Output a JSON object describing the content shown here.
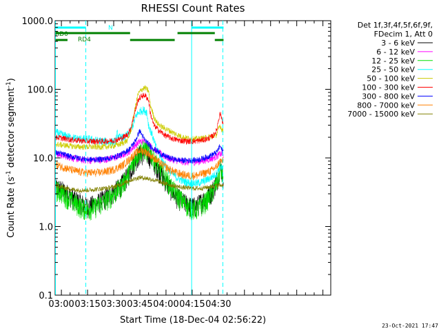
{
  "chart_data": {
    "type": "line",
    "title": "RHESSI Count Rates",
    "xlabel": "Start Time (18-Dec-04 02:56:22)",
    "ylabel_main": "Count Rate (s",
    "ylabel_exp": "-1",
    "ylabel_rest": " detector segment",
    "ylabel_exp2": "-1",
    "ylabel_close": ")",
    "y_scale": "log",
    "ylim": [
      0.1,
      1000
    ],
    "xlim_minutes": [
      56.4,
      214.5
    ],
    "grid": false,
    "legend_position": "right",
    "y_ticks": [
      {
        "value": 1000,
        "label": "1000.0"
      },
      {
        "value": 100,
        "label": "100.0"
      },
      {
        "value": 10,
        "label": "10.0"
      },
      {
        "value": 1,
        "label": "1.0"
      },
      {
        "value": 0.1,
        "label": "0.1"
      }
    ],
    "x_ticks": [
      {
        "minutes": 60,
        "label": "03:00"
      },
      {
        "minutes": 75,
        "label": "03:15"
      },
      {
        "minutes": 90,
        "label": "03:30"
      },
      {
        "minutes": 105,
        "label": "03:45"
      },
      {
        "minutes": 120,
        "label": "04:00"
      },
      {
        "minutes": 135,
        "label": "04:15"
      },
      {
        "minutes": 150,
        "label": "04:30"
      }
    ],
    "legend_header": [
      "Det 1f,3f,4f,5f,6f,9f,",
      "FDecim 1, Att 0"
    ],
    "series": [
      {
        "name": "3 - 6 keV",
        "color": "#000000",
        "points": [
          [
            56.4,
            3.8
          ],
          [
            60,
            3.5
          ],
          [
            64,
            3.0
          ],
          [
            68,
            2.5
          ],
          [
            72,
            2.2
          ],
          [
            75,
            2.0
          ],
          [
            80,
            2.2
          ],
          [
            85,
            2.6
          ],
          [
            90,
            3.2
          ],
          [
            94,
            4.0
          ],
          [
            98,
            5.5
          ],
          [
            102,
            9.0
          ],
          [
            105,
            11.5
          ],
          [
            108,
            11.8
          ],
          [
            111,
            10.5
          ],
          [
            114,
            8.0
          ],
          [
            118,
            5.5
          ],
          [
            122,
            3.8
          ],
          [
            126,
            2.8
          ],
          [
            130,
            2.3
          ],
          [
            134,
            2.0
          ],
          [
            137,
            2.0
          ],
          [
            140,
            2.3
          ],
          [
            143,
            2.7
          ],
          [
            146,
            3.2
          ],
          [
            148,
            4.0
          ],
          [
            150,
            5.5
          ],
          [
            151,
            8.0
          ],
          [
            152,
            6.5
          ],
          [
            153,
            5.0
          ]
        ]
      },
      {
        "name": "6 - 12 keV",
        "color": "#ff00ff",
        "points": [
          [
            56.4,
            11.5
          ],
          [
            60,
            11
          ],
          [
            65,
            10.2
          ],
          [
            70,
            9.5
          ],
          [
            75,
            9.2
          ],
          [
            80,
            9.3
          ],
          [
            85,
            9.5
          ],
          [
            90,
            10
          ],
          [
            95,
            11
          ],
          [
            99,
            12.5
          ],
          [
            102,
            15
          ],
          [
            105,
            17.5
          ],
          [
            108,
            17
          ],
          [
            111,
            15
          ],
          [
            114,
            13
          ],
          [
            118,
            11
          ],
          [
            122,
            9.8
          ],
          [
            126,
            9.2
          ],
          [
            130,
            8.8
          ],
          [
            134,
            8.6
          ],
          [
            138,
            8.8
          ],
          [
            142,
            9.2
          ],
          [
            146,
            9.8
          ],
          [
            149,
            10.5
          ],
          [
            151,
            11.5
          ],
          [
            153,
            11
          ]
        ]
      },
      {
        "name": "12 - 25 keV",
        "color": "#00dd00",
        "points": [
          [
            56.4,
            3.5
          ],
          [
            60,
            3.2
          ],
          [
            64,
            2.6
          ],
          [
            68,
            2.2
          ],
          [
            72,
            1.9
          ],
          [
            75,
            1.8
          ],
          [
            80,
            2.0
          ],
          [
            85,
            2.4
          ],
          [
            90,
            3.0
          ],
          [
            94,
            3.8
          ],
          [
            98,
            5.5
          ],
          [
            102,
            9.5
          ],
          [
            105,
            13
          ],
          [
            108,
            13.5
          ],
          [
            111,
            12
          ],
          [
            114,
            9
          ],
          [
            118,
            6
          ],
          [
            122,
            4.2
          ],
          [
            126,
            3.0
          ],
          [
            130,
            2.3
          ],
          [
            134,
            1.9
          ],
          [
            137,
            1.8
          ],
          [
            140,
            2.0
          ],
          [
            143,
            2.4
          ],
          [
            146,
            3.0
          ],
          [
            148,
            3.8
          ],
          [
            150,
            5.0
          ],
          [
            151,
            7.0
          ],
          [
            152,
            6.0
          ],
          [
            153,
            5.2
          ]
        ]
      },
      {
        "name": "25 - 50 keV",
        "color": "#00ffff",
        "points": [
          [
            56.4,
            24
          ],
          [
            60,
            22
          ],
          [
            65,
            20
          ],
          [
            70,
            19
          ],
          [
            75,
            19
          ],
          [
            80,
            18
          ],
          [
            85,
            17.5
          ],
          [
            88,
            17
          ],
          [
            91,
            17.5
          ],
          [
            92,
            23
          ],
          [
            93,
            20
          ],
          [
            96,
            20
          ],
          [
            99,
            23
          ],
          [
            101,
            30
          ],
          [
            103,
            42
          ],
          [
            105,
            48
          ],
          [
            107,
            50
          ],
          [
            109,
            47
          ],
          [
            110,
            30
          ],
          [
            112,
            22
          ],
          [
            114,
            15
          ],
          [
            118,
            9
          ],
          [
            122,
            6.5
          ],
          [
            126,
            5.2
          ],
          [
            130,
            4.6
          ],
          [
            134,
            4.3
          ],
          [
            138,
            4.3
          ],
          [
            142,
            4.6
          ],
          [
            146,
            5.2
          ],
          [
            149,
            6
          ],
          [
            151,
            7.5
          ],
          [
            153,
            7
          ]
        ]
      },
      {
        "name": "50 - 100 keV",
        "color": "#cccc00",
        "points": [
          [
            56.4,
            16
          ],
          [
            60,
            15.5
          ],
          [
            65,
            15
          ],
          [
            70,
            14.5
          ],
          [
            75,
            14.5
          ],
          [
            80,
            14.5
          ],
          [
            85,
            14.5
          ],
          [
            90,
            15
          ],
          [
            94,
            16
          ],
          [
            98,
            18
          ],
          [
            100,
            26
          ],
          [
            102,
            50
          ],
          [
            104,
            85
          ],
          [
            106,
            100
          ],
          [
            108,
            105
          ],
          [
            110,
            95
          ],
          [
            111,
            60
          ],
          [
            113,
            40
          ],
          [
            115,
            32
          ],
          [
            118,
            28
          ],
          [
            122,
            25
          ],
          [
            126,
            22
          ],
          [
            130,
            20
          ],
          [
            134,
            19
          ],
          [
            138,
            19
          ],
          [
            142,
            19.5
          ],
          [
            146,
            20.5
          ],
          [
            149,
            22
          ],
          [
            151,
            30
          ],
          [
            152,
            26
          ],
          [
            153,
            25
          ]
        ]
      },
      {
        "name": "100 - 300 keV",
        "color": "#ff0000",
        "points": [
          [
            56.4,
            20
          ],
          [
            60,
            19.5
          ],
          [
            65,
            18.5
          ],
          [
            70,
            18
          ],
          [
            75,
            17.5
          ],
          [
            80,
            17.5
          ],
          [
            85,
            17.5
          ],
          [
            90,
            18
          ],
          [
            94,
            19
          ],
          [
            98,
            22
          ],
          [
            100,
            28
          ],
          [
            102,
            45
          ],
          [
            104,
            70
          ],
          [
            106,
            80
          ],
          [
            108,
            82
          ],
          [
            110,
            70
          ],
          [
            111,
            45
          ],
          [
            113,
            30
          ],
          [
            116,
            25
          ],
          [
            120,
            21
          ],
          [
            124,
            19
          ],
          [
            128,
            18
          ],
          [
            132,
            17.5
          ],
          [
            136,
            17.5
          ],
          [
            140,
            18
          ],
          [
            144,
            19
          ],
          [
            147,
            21
          ],
          [
            149,
            25
          ],
          [
            150,
            35
          ],
          [
            151,
            45
          ],
          [
            152,
            38
          ],
          [
            153,
            30
          ]
        ]
      },
      {
        "name": "300 - 800 keV",
        "color": "#0000ff",
        "points": [
          [
            56.4,
            12
          ],
          [
            60,
            11.5
          ],
          [
            65,
            10.5
          ],
          [
            70,
            10
          ],
          [
            75,
            9.5
          ],
          [
            80,
            9.5
          ],
          [
            85,
            9.7
          ],
          [
            90,
            10.2
          ],
          [
            95,
            11.5
          ],
          [
            99,
            13.5
          ],
          [
            102,
            17
          ],
          [
            104,
            22
          ],
          [
            105,
            25
          ],
          [
            106,
            22
          ],
          [
            108,
            18
          ],
          [
            111,
            15
          ],
          [
            114,
            13
          ],
          [
            118,
            11
          ],
          [
            122,
            10
          ],
          [
            126,
            9.4
          ],
          [
            130,
            9.2
          ],
          [
            134,
            9.2
          ],
          [
            138,
            9.4
          ],
          [
            142,
            10
          ],
          [
            146,
            11
          ],
          [
            149,
            12
          ],
          [
            151,
            15
          ],
          [
            152,
            13
          ],
          [
            153,
            12.5
          ]
        ]
      },
      {
        "name": "800 - 7000 keV",
        "color": "#ff8000",
        "points": [
          [
            56.4,
            8
          ],
          [
            60,
            7.5
          ],
          [
            65,
            6.8
          ],
          [
            70,
            6.3
          ],
          [
            75,
            6.1
          ],
          [
            80,
            6.1
          ],
          [
            85,
            6.3
          ],
          [
            90,
            6.8
          ],
          [
            95,
            7.8
          ],
          [
            99,
            9.5
          ],
          [
            102,
            11.5
          ],
          [
            105,
            13
          ],
          [
            108,
            12.5
          ],
          [
            111,
            11
          ],
          [
            114,
            9.5
          ],
          [
            118,
            8
          ],
          [
            122,
            6.8
          ],
          [
            126,
            6.1
          ],
          [
            130,
            5.7
          ],
          [
            134,
            5.5
          ],
          [
            138,
            5.6
          ],
          [
            142,
            6.0
          ],
          [
            146,
            6.6
          ],
          [
            149,
            7.5
          ],
          [
            151,
            9
          ],
          [
            153,
            9
          ]
        ]
      },
      {
        "name": "7000 - 15000 keV",
        "color": "#808000",
        "points": [
          [
            56.4,
            4
          ],
          [
            60,
            3.8
          ],
          [
            65,
            3.5
          ],
          [
            70,
            3.4
          ],
          [
            75,
            3.4
          ],
          [
            80,
            3.5
          ],
          [
            85,
            3.6
          ],
          [
            90,
            3.8
          ],
          [
            95,
            4.2
          ],
          [
            100,
            4.8
          ],
          [
            105,
            5.2
          ],
          [
            110,
            5
          ],
          [
            115,
            4.6
          ],
          [
            120,
            4.2
          ],
          [
            125,
            3.9
          ],
          [
            130,
            3.7
          ],
          [
            135,
            3.6
          ],
          [
            140,
            3.6
          ],
          [
            145,
            3.8
          ],
          [
            150,
            4
          ],
          [
            153,
            4
          ]
        ]
      }
    ],
    "vertical_lines": [
      {
        "minutes": 56.6,
        "style": "solid",
        "color": "#00ffff"
      },
      {
        "minutes": 74.0,
        "style": "dashed",
        "color": "#00ffff"
      },
      {
        "minutes": 134.7,
        "style": "solid",
        "color": "#00ffff"
      },
      {
        "minutes": 152.6,
        "style": "dashed",
        "color": "#00ffff"
      }
    ],
    "flag_bars": [
      {
        "label": "N",
        "color": "#00ffff",
        "level": 0,
        "intervals": [
          [
            56.6,
            74.0
          ],
          [
            134.7,
            153.0
          ]
        ]
      },
      {
        "label": "RD0",
        "color": "#008000",
        "level": 1,
        "intervals": [
          [
            56.6,
            99.4
          ],
          [
            126.6,
            148.0
          ]
        ]
      },
      {
        "label": "RD4",
        "color": "#008000",
        "level": 2,
        "intervals": [
          [
            56.6,
            63.5
          ],
          [
            99.4,
            125.0
          ],
          [
            148.0,
            153.0
          ]
        ]
      }
    ],
    "timestamp": "23-Oct-2021 17:47"
  }
}
